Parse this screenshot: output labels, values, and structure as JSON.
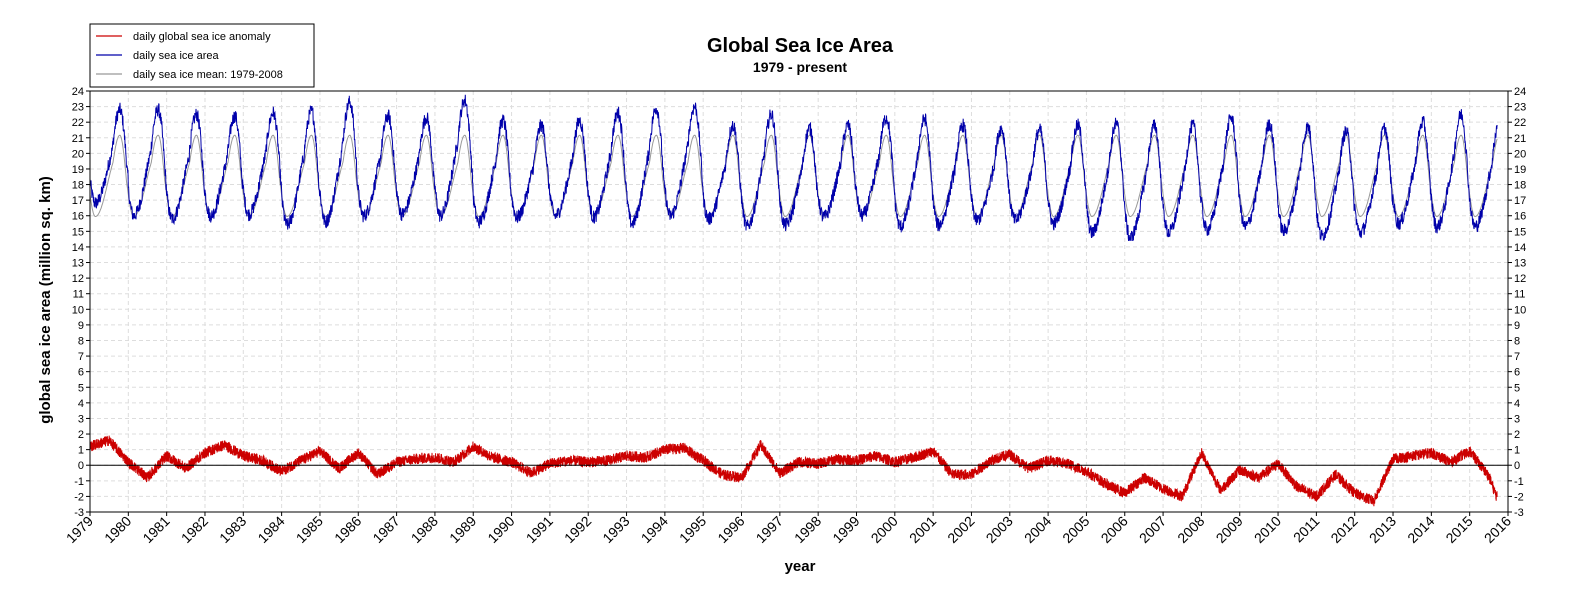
{
  "chart_data": {
    "type": "line",
    "title": "Global Sea Ice Area",
    "subtitle": "1979 - present",
    "xlabel": "year",
    "ylabel": "global sea ice area (million sq. km)",
    "xlim": [
      1979,
      2016
    ],
    "ylim": [
      -3,
      24
    ],
    "grid": true,
    "legend_position": "top-left",
    "x_ticks": [
      "1979",
      "1980",
      "1981",
      "1982",
      "1983",
      "1984",
      "1985",
      "1986",
      "1987",
      "1988",
      "1989",
      "1990",
      "1991",
      "1992",
      "1993",
      "1994",
      "1995",
      "1996",
      "1997",
      "1998",
      "1999",
      "2000",
      "2001",
      "2002",
      "2003",
      "2004",
      "2005",
      "2006",
      "2007",
      "2008",
      "2009",
      "2010",
      "2011",
      "2012",
      "2013",
      "2014",
      "2015",
      "2016"
    ],
    "y_ticks": [
      "-3",
      "-2",
      "-1",
      "0",
      "1",
      "2",
      "3",
      "4",
      "5",
      "6",
      "7",
      "8",
      "9",
      "10",
      "11",
      "12",
      "13",
      "14",
      "15",
      "16",
      "17",
      "18",
      "19",
      "20",
      "21",
      "22",
      "23",
      "24"
    ],
    "series": [
      {
        "name": "daily global sea ice anomaly",
        "color": "#cc0000",
        "values_note": "anomaly roughly -2.5 to 2",
        "x": [
          1979.0,
          1979.5,
          1980.0,
          1980.5,
          1981.0,
          1981.5,
          1982.0,
          1982.5,
          1983.0,
          1983.5,
          1984.0,
          1984.5,
          1985.0,
          1985.5,
          1986.0,
          1986.5,
          1987.0,
          1987.5,
          1988.0,
          1988.5,
          1989.0,
          1989.5,
          1990.0,
          1990.5,
          1991.0,
          1991.5,
          1992.0,
          1992.5,
          1993.0,
          1993.5,
          1994.0,
          1994.5,
          1995.0,
          1995.5,
          1996.0,
          1996.5,
          1997.0,
          1997.5,
          1998.0,
          1998.5,
          1999.0,
          1999.5,
          2000.0,
          2000.5,
          2001.0,
          2001.5,
          2002.0,
          2002.5,
          2003.0,
          2003.5,
          2004.0,
          2004.5,
          2005.0,
          2005.5,
          2006.0,
          2006.5,
          2007.0,
          2007.5,
          2008.0,
          2008.5,
          2009.0,
          2009.5,
          2010.0,
          2010.5,
          2011.0,
          2011.5,
          2012.0,
          2012.5,
          2013.0,
          2013.5,
          2014.0,
          2014.5,
          2015.0,
          2015.5,
          2015.7
        ],
        "y": [
          1.2,
          1.6,
          0.2,
          -0.8,
          0.6,
          -0.2,
          0.8,
          1.3,
          0.6,
          0.3,
          -0.4,
          0.3,
          0.9,
          -0.2,
          0.8,
          -0.6,
          0.2,
          0.4,
          0.5,
          0.2,
          1.2,
          0.5,
          0.2,
          -0.5,
          0.1,
          0.3,
          0.2,
          0.3,
          0.6,
          0.5,
          1.0,
          1.1,
          0.3,
          -0.6,
          -0.8,
          1.3,
          -0.5,
          0.2,
          0.1,
          0.4,
          0.3,
          0.6,
          0.2,
          0.5,
          0.9,
          -0.6,
          -0.6,
          0.3,
          0.7,
          -0.2,
          0.3,
          0.1,
          -0.4,
          -1.2,
          -1.8,
          -0.8,
          -1.5,
          -2.0,
          0.8,
          -1.6,
          -0.3,
          -0.8,
          0.1,
          -1.4,
          -2.0,
          -0.6,
          -1.8,
          -2.3,
          0.4,
          0.6,
          0.8,
          0.2,
          0.9,
          -0.7,
          -2.0
        ]
      },
      {
        "name": "daily sea ice area",
        "color": "#0000aa",
        "values_note": "seasonal cycle approx 15.5 to 23",
        "peaks": [
          22.8,
          22.8,
          22.5,
          22.4,
          22.6,
          22.7,
          23.3,
          22.4,
          22.3,
          23.4,
          22.1,
          21.8,
          22.1,
          22.6,
          22.9,
          23.0,
          21.8,
          22.5,
          21.6,
          21.8,
          22.3,
          22.2,
          21.8,
          21.6,
          21.5,
          21.8,
          21.9,
          21.8,
          21.8,
          22.3,
          21.9,
          21.7,
          21.4,
          21.6,
          22.0,
          22.5,
          22.1,
          20.6
        ],
        "troughs": [
          16.8,
          16.0,
          15.8,
          16.0,
          16.1,
          15.4,
          15.6,
          16.0,
          16.1,
          16.0,
          15.6,
          15.9,
          16.0,
          15.9,
          15.5,
          16.0,
          15.8,
          15.3,
          15.4,
          15.9,
          16.0,
          15.3,
          15.4,
          15.7,
          15.7,
          15.5,
          14.9,
          14.6,
          14.9,
          15.1,
          15.3,
          15.0,
          14.7,
          14.9,
          15.5,
          15.3,
          15.3,
          15.8,
          17.8
        ]
      },
      {
        "name": "daily sea ice mean: 1979-2008",
        "color": "#999999",
        "values_note": "climatological mean cycle approx 15.9 to 22.0"
      }
    ]
  }
}
